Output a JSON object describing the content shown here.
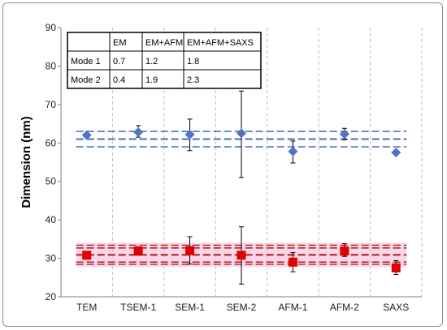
{
  "chart_data": {
    "type": "scatter",
    "title": "",
    "xlabel": "",
    "ylabel": "Dimension (nm)",
    "ylim": [
      20,
      90
    ],
    "yticks": [
      20,
      30,
      40,
      50,
      60,
      70,
      80,
      90
    ],
    "grid": "vertical dashed",
    "categories": [
      "TEM",
      "TSEM-1",
      "SEM-1",
      "SEM-2",
      "AFM-1",
      "AFM-2",
      "SAXS"
    ],
    "series": [
      {
        "marker": "diamond",
        "color": "#4F74C2",
        "values": [
          62.0,
          62.8,
          62.2,
          62.5,
          57.8,
          62.3,
          57.5
        ],
        "err_low": [
          61.5,
          61.5,
          58.0,
          51.0,
          54.8,
          60.8,
          57.2
        ],
        "err_high": [
          62.5,
          64.5,
          66.2,
          73.5,
          60.5,
          63.8,
          57.8
        ],
        "band": {
          "center": 61.0,
          "inner": [
            59.0,
            63.0
          ],
          "color": "#4F74C2"
        }
      },
      {
        "marker": "square",
        "color": "#E00000",
        "values": [
          30.8,
          31.9,
          32.0,
          30.8,
          29.0,
          31.9,
          27.5
        ],
        "err_low": [
          30.0,
          30.8,
          28.5,
          23.3,
          26.5,
          30.5,
          25.8
        ],
        "err_high": [
          31.6,
          33.0,
          35.6,
          38.2,
          31.5,
          33.8,
          29.4
        ],
        "band": {
          "center": 30.9,
          "inner": [
            29.0,
            32.7
          ],
          "outer": [
            28.4,
            33.4
          ],
          "color": "#B22222",
          "halo": "#F4B6D6"
        }
      }
    ],
    "table": {
      "headers": [
        "",
        "EM",
        "EM+AFM",
        "EM+AFM+SAXS"
      ],
      "rows": [
        [
          "Mode 1",
          "0.7",
          "1.2",
          "1.8"
        ],
        [
          "Mode 2",
          "0.4",
          "1.9",
          "2.3"
        ]
      ]
    },
    "accent_colors": {
      "axis": "#808080",
      "grid": "#BFBFBF",
      "table_border": "#000000"
    }
  }
}
